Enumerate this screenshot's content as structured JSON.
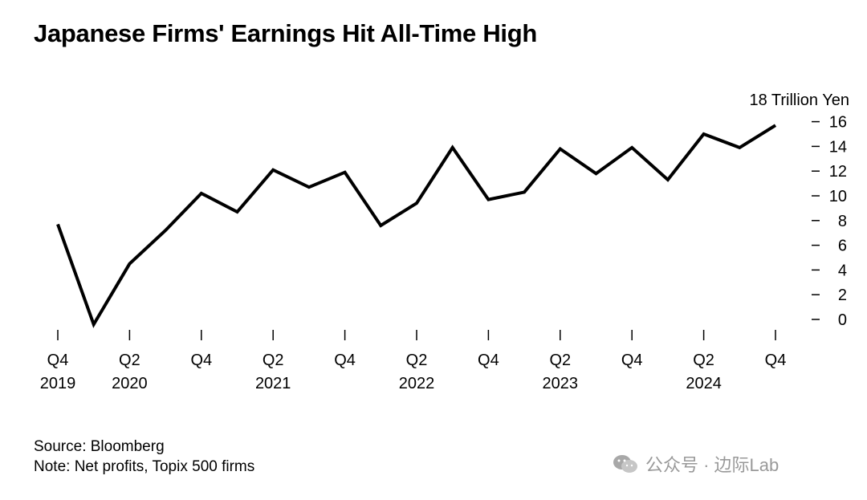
{
  "title": "Japanese Firms' Earnings Hit All-Time High",
  "footer": {
    "source": "Source: Bloomberg",
    "note": "Note: Net profits, Topix 500 firms"
  },
  "watermark": {
    "icon": "wechat-icon",
    "text": "公众号 · 边际Lab"
  },
  "chart_data": {
    "type": "line",
    "title": "Japanese Firms' Earnings Hit All-Time High",
    "unit_label": "18 Trillion Yen",
    "ylim": [
      -1,
      18
    ],
    "y_ticks": [
      0,
      2,
      4,
      6,
      8,
      10,
      12,
      14,
      16
    ],
    "y_axis_position": "right",
    "grid": false,
    "x": [
      "Q4 2019",
      "Q1 2020",
      "Q2 2020",
      "Q3 2020",
      "Q4 2020",
      "Q1 2021",
      "Q2 2021",
      "Q3 2021",
      "Q4 2021",
      "Q1 2022",
      "Q2 2022",
      "Q3 2022",
      "Q4 2022",
      "Q1 2023",
      "Q2 2023",
      "Q3 2023",
      "Q4 2023",
      "Q1 2024",
      "Q2 2024",
      "Q3 2024",
      "Q4 2024"
    ],
    "x_tick_labels": [
      {
        "index": 0,
        "quarter": "Q4",
        "year": "2019"
      },
      {
        "index": 2,
        "quarter": "Q2",
        "year": "2020"
      },
      {
        "index": 4,
        "quarter": "Q4",
        "year": ""
      },
      {
        "index": 6,
        "quarter": "Q2",
        "year": "2021"
      },
      {
        "index": 8,
        "quarter": "Q4",
        "year": ""
      },
      {
        "index": 10,
        "quarter": "Q2",
        "year": "2022"
      },
      {
        "index": 12,
        "quarter": "Q4",
        "year": ""
      },
      {
        "index": 14,
        "quarter": "Q2",
        "year": "2023"
      },
      {
        "index": 16,
        "quarter": "Q4",
        "year": ""
      },
      {
        "index": 18,
        "quarter": "Q2",
        "year": "2024"
      },
      {
        "index": 20,
        "quarter": "Q4",
        "year": ""
      }
    ],
    "series": [
      {
        "values": [
          7.7,
          -0.4,
          4.5,
          7.2,
          10.2,
          8.7,
          12.1,
          10.7,
          11.9,
          7.6,
          9.4,
          13.9,
          9.7,
          10.3,
          13.8,
          11.8,
          13.9,
          11.3,
          15.0,
          13.9,
          15.7
        ],
        "color": "#000000"
      }
    ]
  }
}
